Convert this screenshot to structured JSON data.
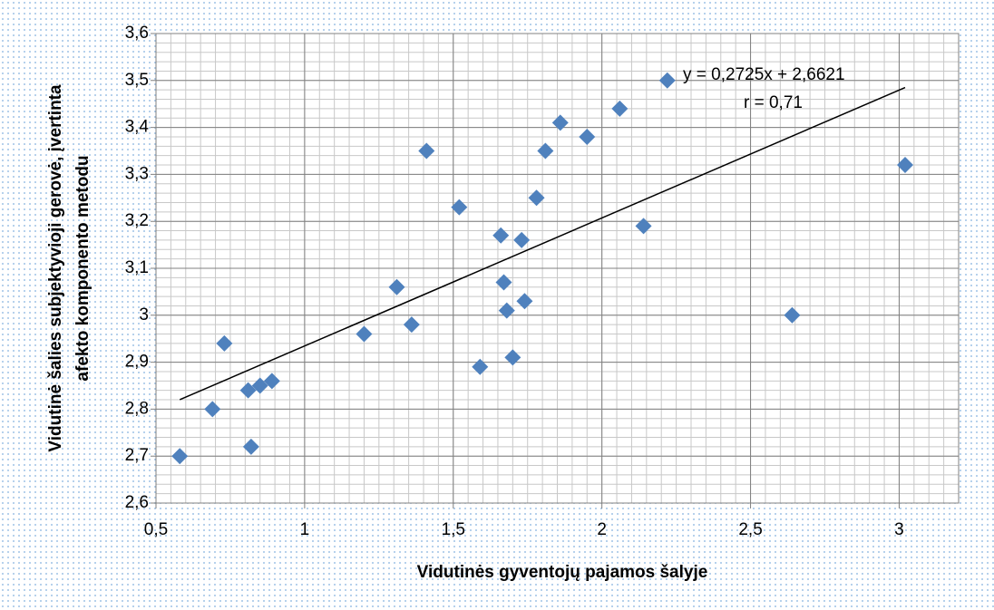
{
  "chart_data": {
    "type": "scatter",
    "x_label": "Vidutinės gyventojų pajamos šalyje",
    "y_label": [
      "Vidutinė šalies subjektyvioji gerovė, įvertinta",
      "afekto komponento metodu"
    ],
    "annotations": [
      "y = 0,2725x + 2,6621",
      "r = 0,71"
    ],
    "x": [
      0.58,
      0.69,
      0.73,
      0.81,
      0.82,
      0.85,
      0.89,
      1.2,
      1.31,
      1.36,
      1.41,
      1.52,
      1.59,
      1.66,
      1.67,
      1.68,
      1.7,
      1.73,
      1.74,
      1.78,
      1.81,
      1.86,
      1.95,
      2.06,
      2.14,
      2.22,
      2.64,
      3.02
    ],
    "values": [
      2.7,
      2.8,
      2.94,
      2.84,
      2.72,
      2.85,
      2.86,
      2.96,
      3.06,
      2.98,
      3.35,
      3.23,
      2.89,
      3.17,
      3.07,
      3.01,
      2.91,
      3.16,
      3.03,
      3.25,
      3.35,
      3.41,
      3.38,
      3.44,
      3.19,
      3.5,
      3.0,
      3.32
    ],
    "color": "#4f81bd",
    "trendline": {
      "slope": 0.2725,
      "intercept": 2.6621,
      "x": [
        0.58,
        3.02
      ],
      "color": "#000000"
    },
    "xlim": [
      0.5,
      3.2
    ],
    "xticks": [
      {
        "value": 0.5,
        "label": "0,5"
      },
      1,
      {
        "value": 1.5,
        "label": "1,5"
      },
      2,
      {
        "value": 2.5,
        "label": "2,5"
      },
      3
    ],
    "ylim": [
      2.6,
      3.6
    ],
    "yticks": [
      {
        "value": 2.6,
        "label": "2,6"
      },
      {
        "value": 2.7,
        "label": "2,7"
      },
      {
        "value": 2.8,
        "label": "2,8"
      },
      {
        "value": 2.9,
        "label": "2,9"
      },
      3,
      {
        "value": 3.1,
        "label": "3,1"
      },
      {
        "value": 3.2,
        "label": "3,2"
      },
      {
        "value": 3.3,
        "label": "3,3"
      },
      {
        "value": 3.4,
        "label": "3,4"
      },
      {
        "value": 3.5,
        "label": "3,5"
      },
      {
        "value": 3.6,
        "label": "3,6"
      }
    ],
    "grid": true,
    "minor_grid_divisions": {
      "x": 10,
      "y": 5
    }
  }
}
